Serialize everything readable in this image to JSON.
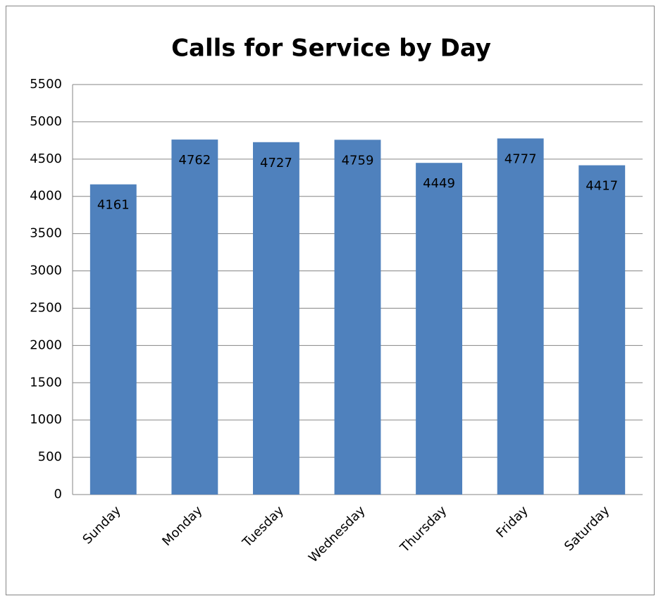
{
  "chart_data": {
    "type": "bar",
    "title": "Calls for Service by Day",
    "categories": [
      "Sunday",
      "Monday",
      "Tuesday",
      "Wednesday",
      "Thursday",
      "Friday",
      "Saturday"
    ],
    "values": [
      4161,
      4762,
      4727,
      4759,
      4449,
      4777,
      4417
    ],
    "color": "#4f81bd",
    "ylim": [
      0,
      5500
    ],
    "yticks": [
      0,
      500,
      1000,
      1500,
      2000,
      2500,
      3000,
      3500,
      4000,
      4500,
      5000,
      5500
    ],
    "grid": true
  }
}
